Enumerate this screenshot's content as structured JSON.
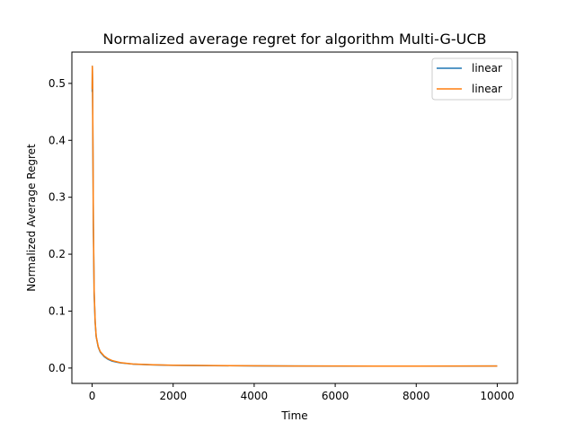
{
  "chart_data": {
    "type": "line",
    "title": "Normalized average regret for algorithm Multi-G-UCB",
    "xlabel": "Time",
    "ylabel": "Normalized Average Regret",
    "xlim": [
      -500,
      10500
    ],
    "ylim": [
      -0.027,
      0.555
    ],
    "xticks": [
      0,
      2000,
      4000,
      6000,
      8000,
      10000
    ],
    "yticks": [
      0.0,
      0.1,
      0.2,
      0.3,
      0.4,
      0.5
    ],
    "xtick_labels": [
      "0",
      "2000",
      "4000",
      "6000",
      "8000",
      "10000"
    ],
    "ytick_labels": [
      "0.0",
      "0.1",
      "0.2",
      "0.3",
      "0.4",
      "0.5"
    ],
    "grid": false,
    "legend": {
      "position": "top-right"
    },
    "series": [
      {
        "name": "linear",
        "color": "#1f77b4",
        "x": [
          1,
          5,
          10,
          20,
          30,
          50,
          75,
          100,
          150,
          200,
          300,
          400,
          500,
          700,
          1000,
          1500,
          2000,
          3000,
          4000,
          5000,
          6000,
          7000,
          8000,
          9000,
          10000
        ],
        "y": [
          0.485,
          0.53,
          0.5,
          0.38,
          0.25,
          0.13,
          0.08,
          0.055,
          0.037,
          0.028,
          0.02,
          0.015,
          0.012,
          0.009,
          0.007,
          0.0055,
          0.0048,
          0.0042,
          0.0038,
          0.0035,
          0.0034,
          0.0033,
          0.0033,
          0.0034,
          0.0035
        ]
      },
      {
        "name": "linear",
        "color": "#ff7f0e",
        "x": [
          1,
          5,
          10,
          20,
          30,
          50,
          75,
          100,
          150,
          200,
          300,
          400,
          500,
          700,
          1000,
          1500,
          2000,
          3000,
          4000,
          5000,
          6000,
          7000,
          8000,
          9000,
          10000
        ],
        "y": [
          0.49,
          0.53,
          0.51,
          0.39,
          0.26,
          0.135,
          0.082,
          0.056,
          0.038,
          0.029,
          0.021,
          0.016,
          0.013,
          0.0095,
          0.0072,
          0.0057,
          0.0049,
          0.0043,
          0.0039,
          0.0036,
          0.0035,
          0.0034,
          0.0034,
          0.0035,
          0.0036
        ]
      }
    ]
  }
}
